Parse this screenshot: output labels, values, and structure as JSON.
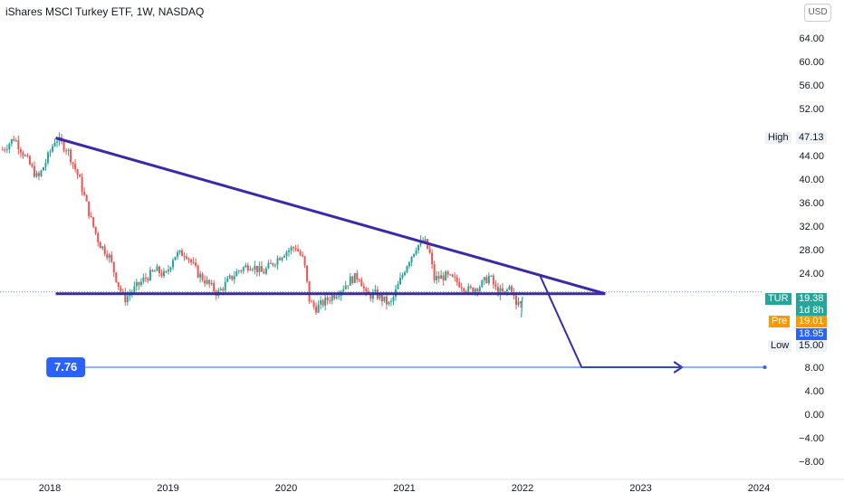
{
  "header": {
    "title": "iShares MSCI Turkey ETF, 1W, NASDAQ",
    "currency_button": "USD"
  },
  "colors": {
    "up": "#26a69a",
    "down": "#ef5350",
    "trendline": "#3a2aa8",
    "target_line": "#2962ff",
    "symbol_tag": "#26a69a",
    "pre_tag": "#ff9800",
    "bid_tag": "#2962ff",
    "price_line": "#5b9bd5"
  },
  "chart_data": {
    "type": "candlestick",
    "title": "iShares MSCI Turkey ETF, 1W, NASDAQ",
    "y_axis_ticks": [
      64.0,
      60.0,
      56.0,
      52.0,
      44.0,
      40.0,
      36.0,
      32.0,
      28.0,
      24.0,
      8.0,
      4.0,
      0.0,
      -4.0,
      -8.0
    ],
    "y_axis_tick_labels": [
      "64.00",
      "60.00",
      "56.00",
      "52.00",
      "44.00",
      "40.00",
      "36.00",
      "32.00",
      "28.00",
      "24.00",
      "8.00",
      "4.00",
      "0.00",
      "−4.00",
      "−8.00"
    ],
    "x_axis_labels": [
      "2018",
      "2019",
      "2020",
      "2021",
      "2022",
      "2023",
      "2024"
    ],
    "x_axis_years": [
      2018,
      2019,
      2020,
      2021,
      2022,
      2023,
      2024
    ],
    "ylim": [
      -10,
      68
    ],
    "price_path": [
      [
        2017.6,
        45.0
      ],
      [
        2017.7,
        47.0
      ],
      [
        2017.8,
        43.5
      ],
      [
        2017.9,
        40.0
      ],
      [
        2018.0,
        44.5
      ],
      [
        2018.05,
        47.0
      ],
      [
        2018.15,
        45.0
      ],
      [
        2018.25,
        40.0
      ],
      [
        2018.35,
        33.0
      ],
      [
        2018.42,
        29.0
      ],
      [
        2018.5,
        27.0
      ],
      [
        2018.58,
        22.0
      ],
      [
        2018.63,
        19.5
      ],
      [
        2018.7,
        21.0
      ],
      [
        2018.8,
        23.0
      ],
      [
        2018.9,
        24.5
      ],
      [
        2018.98,
        23.5
      ],
      [
        2019.05,
        27.0
      ],
      [
        2019.15,
        27.5
      ],
      [
        2019.25,
        24.0
      ],
      [
        2019.35,
        22.0
      ],
      [
        2019.42,
        20.5
      ],
      [
        2019.5,
        22.5
      ],
      [
        2019.6,
        24.5
      ],
      [
        2019.7,
        25.5
      ],
      [
        2019.8,
        24.0
      ],
      [
        2019.9,
        26.0
      ],
      [
        2019.98,
        27.5
      ],
      [
        2020.08,
        28.5
      ],
      [
        2020.15,
        26.0
      ],
      [
        2020.2,
        19.0
      ],
      [
        2020.25,
        18.0
      ],
      [
        2020.35,
        19.5
      ],
      [
        2020.45,
        21.0
      ],
      [
        2020.55,
        23.0
      ],
      [
        2020.62,
        23.5
      ],
      [
        2020.68,
        20.0
      ],
      [
        2020.75,
        20.5
      ],
      [
        2020.82,
        19.5
      ],
      [
        2020.88,
        18.5
      ],
      [
        2020.95,
        22.0
      ],
      [
        2021.02,
        25.5
      ],
      [
        2021.1,
        28.5
      ],
      [
        2021.17,
        29.5
      ],
      [
        2021.22,
        27.0
      ],
      [
        2021.25,
        23.0
      ],
      [
        2021.35,
        23.5
      ],
      [
        2021.45,
        22.5
      ],
      [
        2021.55,
        21.0
      ],
      [
        2021.65,
        22.0
      ],
      [
        2021.72,
        23.5
      ],
      [
        2021.78,
        21.0
      ],
      [
        2021.85,
        20.5
      ],
      [
        2021.9,
        22.0
      ],
      [
        2021.95,
        18.0
      ],
      [
        2021.97,
        19.5
      ],
      [
        2021.99,
        18.5
      ]
    ],
    "all_time_high_label": "High",
    "all_time_high_value": "47.13",
    "low_label": "Low",
    "low_value": "15.00",
    "symbol": "TUR",
    "last_price": "19.38",
    "time_to_close": "1d 8h",
    "pre_label": "Pre",
    "pre_price": "19.01",
    "bid_price": "18.95",
    "target_label": "7.76",
    "drawings": {
      "descending_trendline": {
        "from": [
          2018.05,
          47.0
        ],
        "to": [
          2022.7,
          20.5
        ]
      },
      "support_line": {
        "from": [
          2018.05,
          20.5
        ],
        "to": [
          2022.7,
          20.5
        ]
      },
      "projection_path": [
        [
          2022.15,
          23.5
        ],
        [
          2022.5,
          8.0
        ],
        [
          2023.35,
          8.0
        ]
      ],
      "target_line": {
        "from": [
          2018.3,
          8.0
        ],
        "to": [
          2024.05,
          8.0
        ],
        "value": 7.76
      }
    },
    "grid": false
  }
}
